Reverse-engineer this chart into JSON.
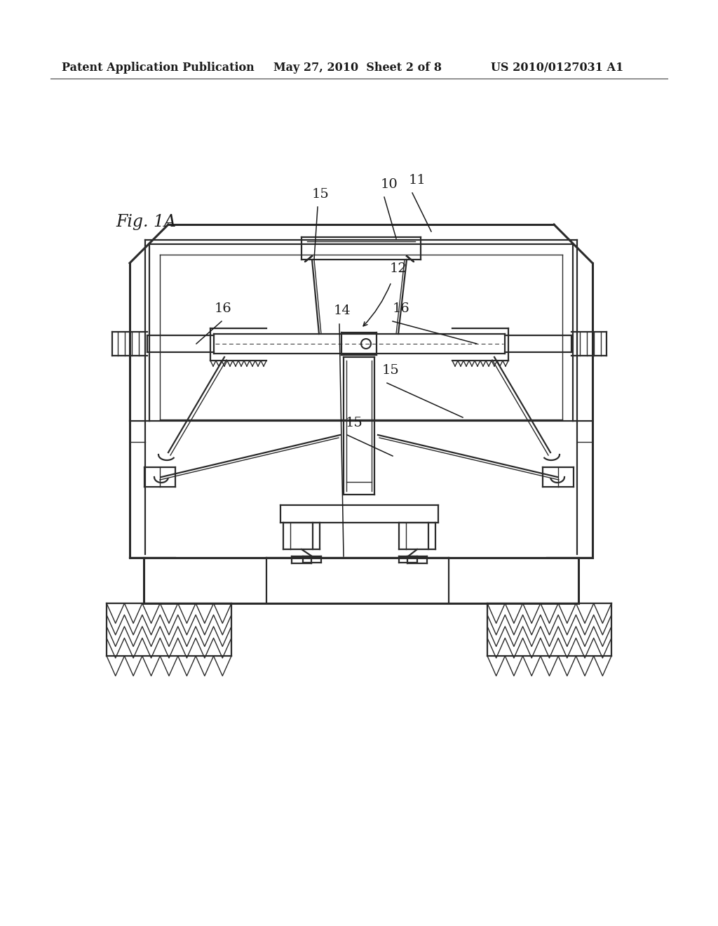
{
  "background_color": "#ffffff",
  "line_color": "#2a2a2a",
  "header_left": "Patent Application Publication",
  "header_center": "May 27, 2010  Sheet 2 of 8",
  "header_right": "US 2010/0127031 A1",
  "fig_label": "Fig. 1A"
}
